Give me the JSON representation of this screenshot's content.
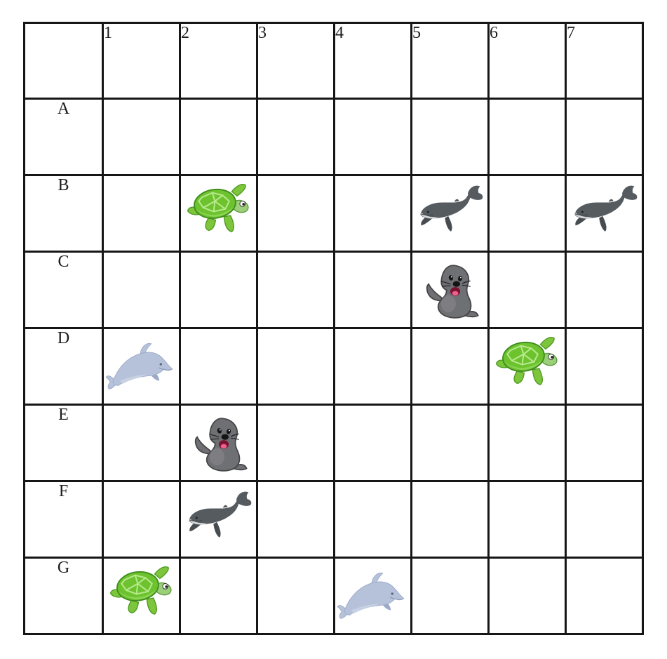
{
  "page": {
    "background_color": "#ffffff"
  },
  "grid": {
    "line_color": "#161616",
    "columns": [
      "1",
      "2",
      "3",
      "4",
      "5",
      "6",
      "7"
    ],
    "rows": [
      "A",
      "B",
      "C",
      "D",
      "E",
      "F",
      "G"
    ]
  },
  "animals": {
    "turtle": {
      "label": "green sea turtle",
      "body_color": "#6cc32e",
      "plate_color": "#b8e88c"
    },
    "whale": {
      "label": "humpback whale",
      "body_color": "#565b60",
      "belly_color": "#d4d7d9"
    },
    "seal": {
      "label": "seal",
      "body_color": "#6f7073",
      "tongue_color": "#ef5f8f"
    },
    "dolphin": {
      "label": "dolphin",
      "body_color": "#b6c2da",
      "fin_color": "#9aaac8"
    }
  },
  "placements": [
    {
      "row": "B",
      "col": "2",
      "animal": "turtle"
    },
    {
      "row": "B",
      "col": "5",
      "animal": "whale"
    },
    {
      "row": "B",
      "col": "7",
      "animal": "whale"
    },
    {
      "row": "C",
      "col": "5",
      "animal": "seal"
    },
    {
      "row": "D",
      "col": "1",
      "animal": "dolphin"
    },
    {
      "row": "D",
      "col": "6",
      "animal": "turtle"
    },
    {
      "row": "E",
      "col": "2",
      "animal": "seal"
    },
    {
      "row": "F",
      "col": "2",
      "animal": "whale"
    },
    {
      "row": "G",
      "col": "1",
      "animal": "turtle"
    },
    {
      "row": "G",
      "col": "4",
      "animal": "dolphin"
    }
  ]
}
